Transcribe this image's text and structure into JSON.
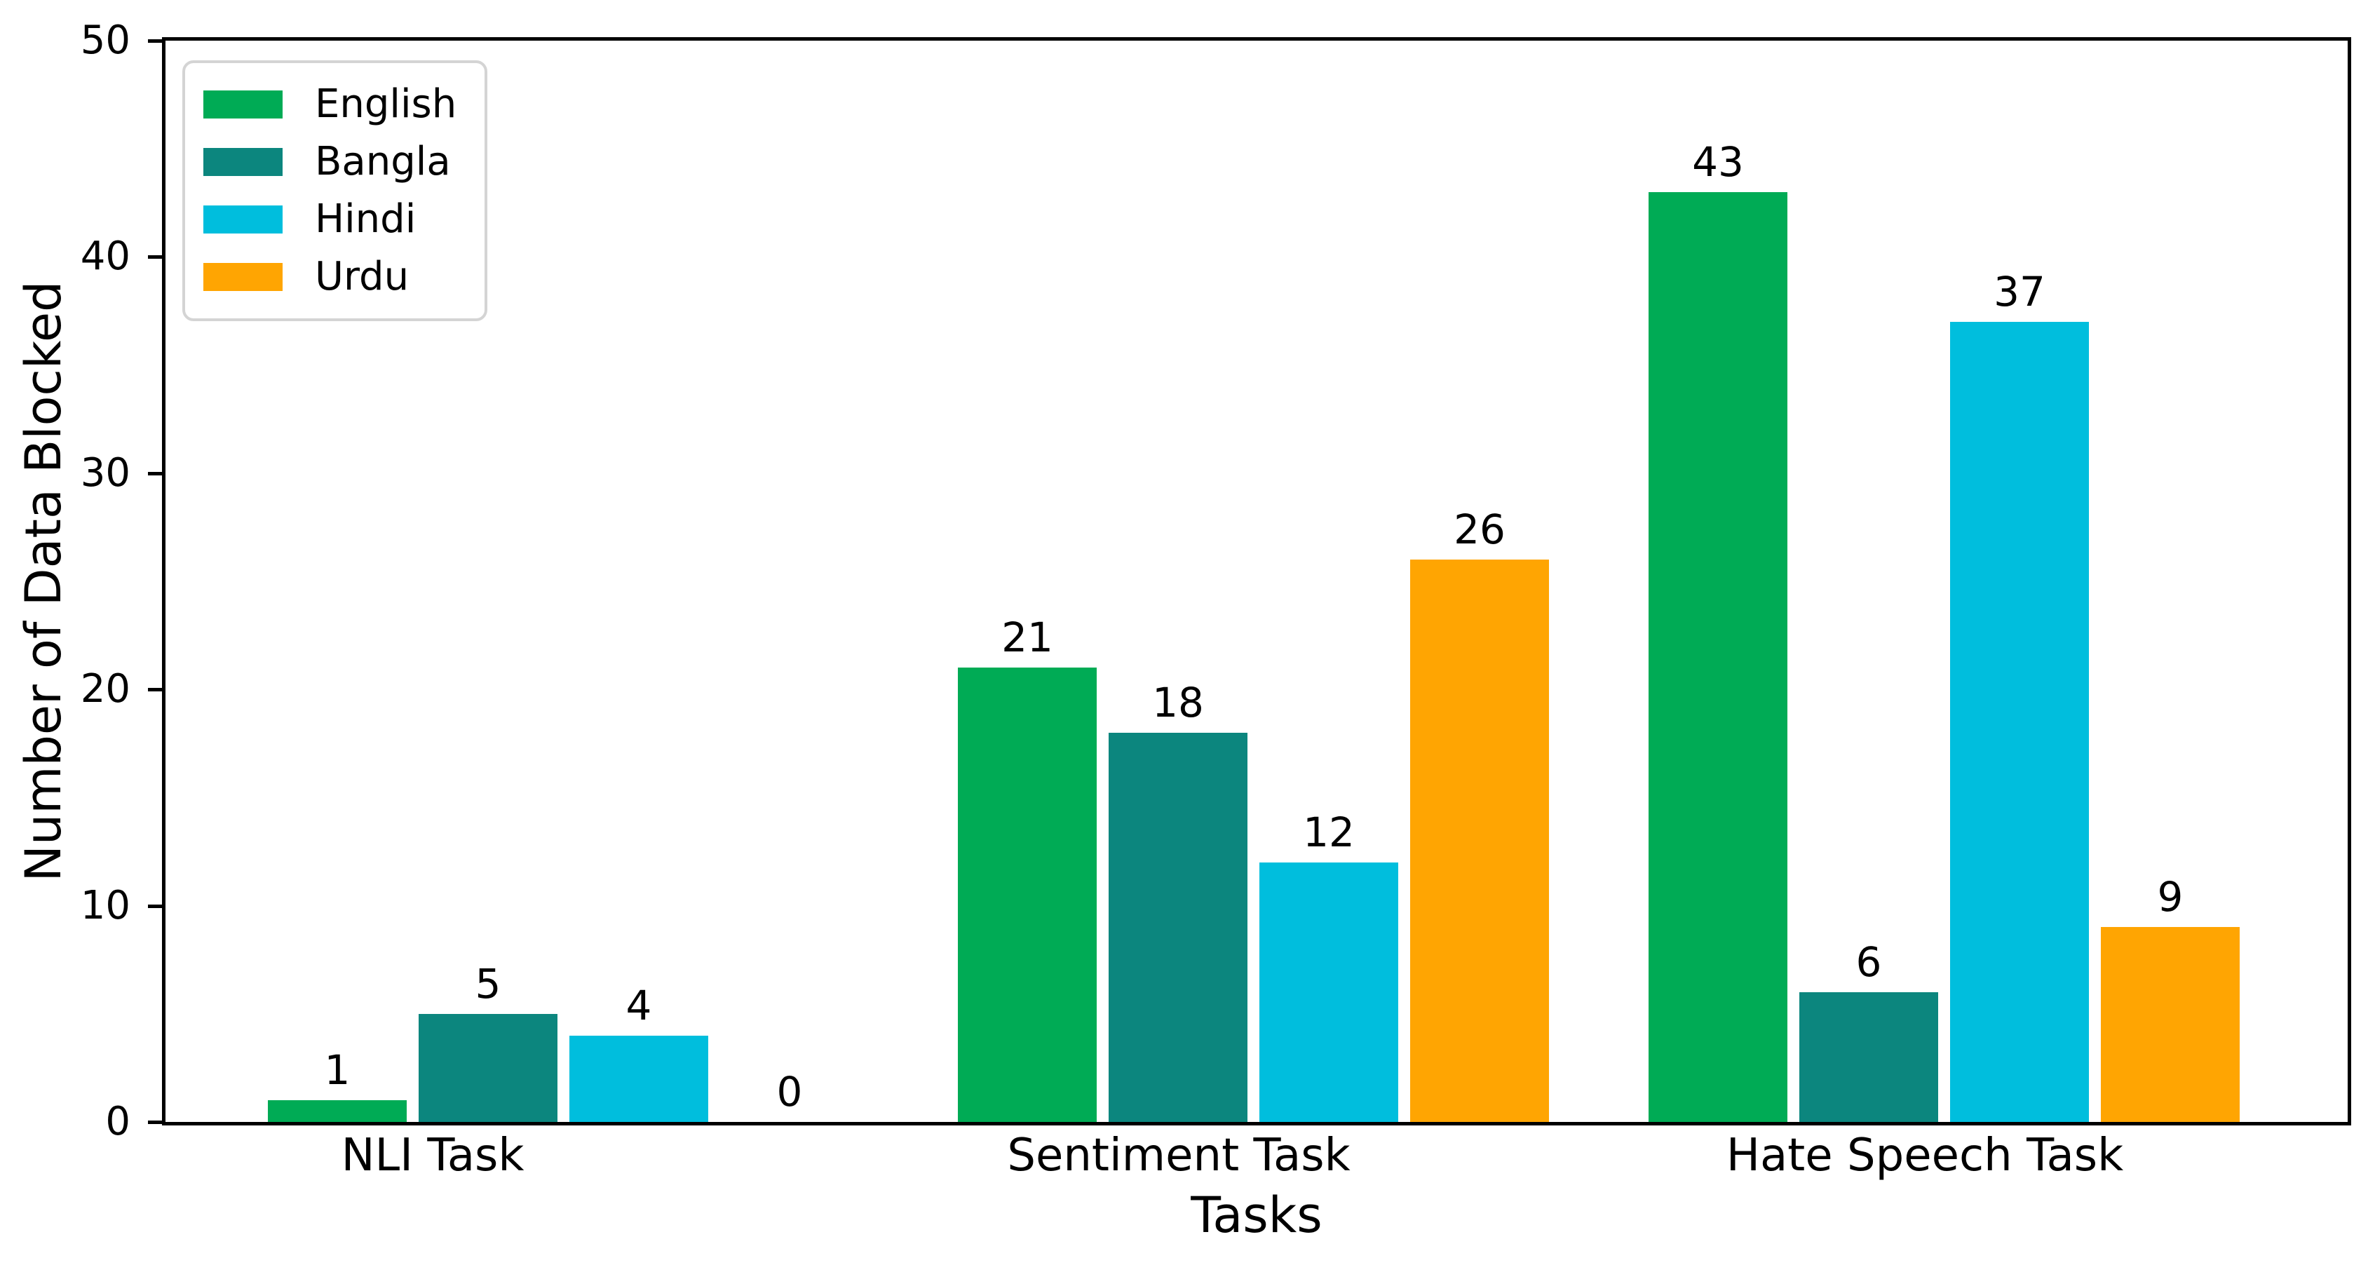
{
  "chart_data": {
    "type": "bar",
    "title": "",
    "xlabel": "Tasks",
    "ylabel": "Number of Data Blocked",
    "categories": [
      "NLI Task",
      "Sentiment Task",
      "Hate Speech Task"
    ],
    "series": [
      {
        "name": "English",
        "color": "#00ab55",
        "values": [
          1,
          21,
          43
        ]
      },
      {
        "name": "Bangla",
        "color": "#0c867e",
        "values": [
          5,
          18,
          6
        ]
      },
      {
        "name": "Hindi",
        "color": "#00bedd",
        "values": [
          4,
          12,
          37
        ]
      },
      {
        "name": "Urdu",
        "color": "#ffa502",
        "values": [
          0,
          26,
          9
        ]
      }
    ],
    "ylim": [
      0,
      50
    ],
    "yticks": [
      0,
      10,
      20,
      30,
      40,
      50
    ],
    "bar_value_labels": true,
    "legend_position": "upper-left",
    "grid": false,
    "background_color": "#ffffff",
    "text_color": "#000000"
  }
}
